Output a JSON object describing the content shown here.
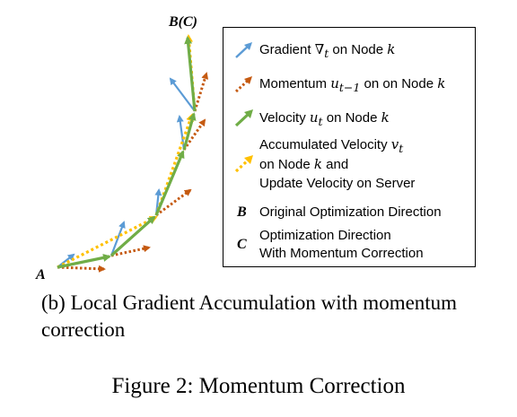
{
  "diagram": {
    "label_start": "A",
    "label_end": "B(C)",
    "colors": {
      "gradient": "#5b9bd5",
      "momentum": "#c55a11",
      "velocity": "#70ad47",
      "accumulated": "#ffc000"
    }
  },
  "legend": {
    "gradient": {
      "prefix": "Gradient ",
      "math": "∇",
      "sub": "t",
      "suffix": " on Node ",
      "node": "k",
      "icon": "blue-arrow-icon"
    },
    "momentum": {
      "prefix": "Momentum ",
      "math": "u",
      "sub": "t−1",
      "suffix": " on on Node ",
      "node": "k",
      "icon": "dotted-orange-arrow-icon"
    },
    "velocity": {
      "prefix": "Velocity ",
      "math": "u",
      "sub": "t",
      "suffix": " on Node ",
      "node": "k",
      "icon": "green-arrow-icon"
    },
    "accumulated": {
      "line1_prefix": "Accumulated Velocity ",
      "math": "v",
      "sub": "t",
      "line2_prefix": "on Node ",
      "node": "k",
      "line2_suffix": " and",
      "line3": "Update Velocity on Server",
      "icon": "dotted-yellow-arrow-icon"
    },
    "original": {
      "letter": "B",
      "text": "Original Optimization Direction"
    },
    "corrected": {
      "letter": "C",
      "line1": "Optimization Direction",
      "line2": "With Momentum Correction"
    }
  },
  "subcaption": "(b) Local Gradient Accumulation with momentum correction",
  "caption": "Figure 2: Momentum Correction"
}
